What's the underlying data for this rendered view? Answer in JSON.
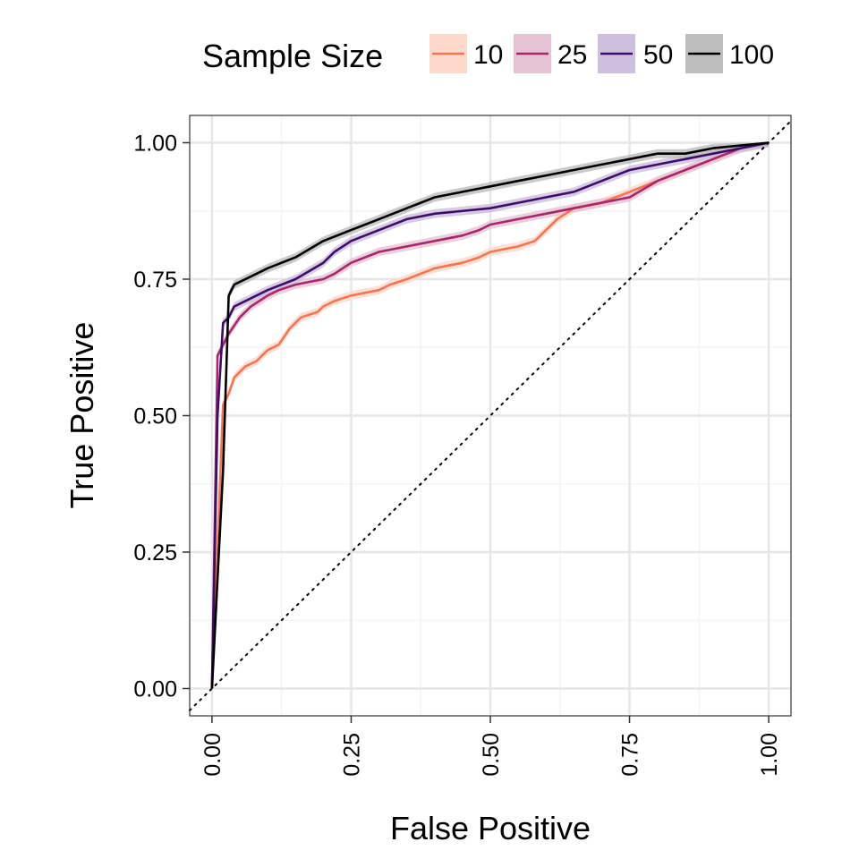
{
  "chart_data": {
    "type": "line",
    "title": "",
    "xlabel": "False Positive",
    "ylabel": "True Positive",
    "xlim": [
      -0.04,
      1.04
    ],
    "ylim": [
      -0.05,
      1.05
    ],
    "x_ticks": [
      0,
      0.25,
      0.5,
      0.75,
      1
    ],
    "x_tick_labels": [
      "0.00",
      "0.25",
      "0.50",
      "0.75",
      "1.00"
    ],
    "y_ticks": [
      0,
      0.25,
      0.5,
      0.75,
      1
    ],
    "y_tick_labels": [
      "0.00",
      "0.25",
      "0.50",
      "0.75",
      "1.00"
    ],
    "grid": true,
    "reference_line": {
      "style": "dotted",
      "color": "#000000",
      "from": [
        -0.04,
        -0.04
      ],
      "to": [
        1.04,
        1.04
      ]
    },
    "legend": {
      "title": "Sample Size",
      "position": "top",
      "entries": [
        "10",
        "25",
        "50",
        "100"
      ]
    },
    "series": [
      {
        "name": "10",
        "color": "#F6744F",
        "ribbon_color": "#FDD9CC",
        "points": [
          [
            0,
            0
          ],
          [
            0.02,
            0.52
          ],
          [
            0.03,
            0.54
          ],
          [
            0.04,
            0.57
          ],
          [
            0.05,
            0.58
          ],
          [
            0.06,
            0.59
          ],
          [
            0.08,
            0.6
          ],
          [
            0.1,
            0.62
          ],
          [
            0.12,
            0.63
          ],
          [
            0.14,
            0.66
          ],
          [
            0.16,
            0.68
          ],
          [
            0.19,
            0.69
          ],
          [
            0.2,
            0.7
          ],
          [
            0.22,
            0.71
          ],
          [
            0.25,
            0.72
          ],
          [
            0.3,
            0.73
          ],
          [
            0.32,
            0.74
          ],
          [
            0.35,
            0.75
          ],
          [
            0.4,
            0.77
          ],
          [
            0.45,
            0.78
          ],
          [
            0.48,
            0.79
          ],
          [
            0.5,
            0.8
          ],
          [
            0.55,
            0.81
          ],
          [
            0.58,
            0.82
          ],
          [
            0.6,
            0.84
          ],
          [
            0.62,
            0.86
          ],
          [
            0.65,
            0.88
          ],
          [
            0.7,
            0.89
          ],
          [
            0.75,
            0.91
          ],
          [
            0.8,
            0.93
          ],
          [
            0.85,
            0.95
          ],
          [
            0.9,
            0.97
          ],
          [
            0.95,
            0.99
          ],
          [
            1,
            1
          ]
        ]
      },
      {
        "name": "25",
        "color": "#A8276C",
        "ribbon_color": "#E5C3D5",
        "points": [
          [
            0,
            0
          ],
          [
            0.01,
            0.61
          ],
          [
            0.02,
            0.63
          ],
          [
            0.03,
            0.65
          ],
          [
            0.05,
            0.68
          ],
          [
            0.07,
            0.7
          ],
          [
            0.1,
            0.72
          ],
          [
            0.12,
            0.73
          ],
          [
            0.15,
            0.74
          ],
          [
            0.2,
            0.75
          ],
          [
            0.22,
            0.76
          ],
          [
            0.25,
            0.78
          ],
          [
            0.3,
            0.8
          ],
          [
            0.35,
            0.81
          ],
          [
            0.4,
            0.82
          ],
          [
            0.45,
            0.83
          ],
          [
            0.48,
            0.84
          ],
          [
            0.5,
            0.85
          ],
          [
            0.55,
            0.86
          ],
          [
            0.6,
            0.87
          ],
          [
            0.65,
            0.88
          ],
          [
            0.7,
            0.89
          ],
          [
            0.75,
            0.9
          ],
          [
            0.8,
            0.93
          ],
          [
            0.85,
            0.95
          ],
          [
            0.9,
            0.97
          ],
          [
            0.95,
            0.99
          ],
          [
            1,
            1
          ]
        ]
      },
      {
        "name": "50",
        "color": "#3D0D68",
        "ribbon_color": "#CDBFDD",
        "points": [
          [
            0,
            0
          ],
          [
            0.01,
            0.5
          ],
          [
            0.02,
            0.67
          ],
          [
            0.03,
            0.68
          ],
          [
            0.04,
            0.7
          ],
          [
            0.06,
            0.71
          ],
          [
            0.08,
            0.72
          ],
          [
            0.1,
            0.73
          ],
          [
            0.15,
            0.75
          ],
          [
            0.2,
            0.78
          ],
          [
            0.22,
            0.8
          ],
          [
            0.25,
            0.82
          ],
          [
            0.3,
            0.84
          ],
          [
            0.35,
            0.86
          ],
          [
            0.4,
            0.87
          ],
          [
            0.5,
            0.88
          ],
          [
            0.55,
            0.89
          ],
          [
            0.6,
            0.9
          ],
          [
            0.65,
            0.91
          ],
          [
            0.7,
            0.93
          ],
          [
            0.75,
            0.95
          ],
          [
            0.8,
            0.96
          ],
          [
            0.85,
            0.97
          ],
          [
            0.9,
            0.98
          ],
          [
            0.95,
            0.99
          ],
          [
            1,
            1
          ]
        ]
      },
      {
        "name": "100",
        "color": "#000000",
        "ribbon_color": "#BDBDBD",
        "points": [
          [
            0,
            0
          ],
          [
            0.02,
            0.4
          ],
          [
            0.03,
            0.72
          ],
          [
            0.04,
            0.74
          ],
          [
            0.06,
            0.75
          ],
          [
            0.08,
            0.76
          ],
          [
            0.1,
            0.77
          ],
          [
            0.15,
            0.79
          ],
          [
            0.2,
            0.82
          ],
          [
            0.25,
            0.84
          ],
          [
            0.3,
            0.86
          ],
          [
            0.35,
            0.88
          ],
          [
            0.4,
            0.9
          ],
          [
            0.45,
            0.91
          ],
          [
            0.5,
            0.92
          ],
          [
            0.55,
            0.93
          ],
          [
            0.6,
            0.94
          ],
          [
            0.65,
            0.95
          ],
          [
            0.7,
            0.96
          ],
          [
            0.75,
            0.97
          ],
          [
            0.8,
            0.98
          ],
          [
            0.85,
            0.98
          ],
          [
            0.9,
            0.99
          ],
          [
            0.95,
            0.995
          ],
          [
            1,
            1
          ]
        ]
      }
    ]
  }
}
